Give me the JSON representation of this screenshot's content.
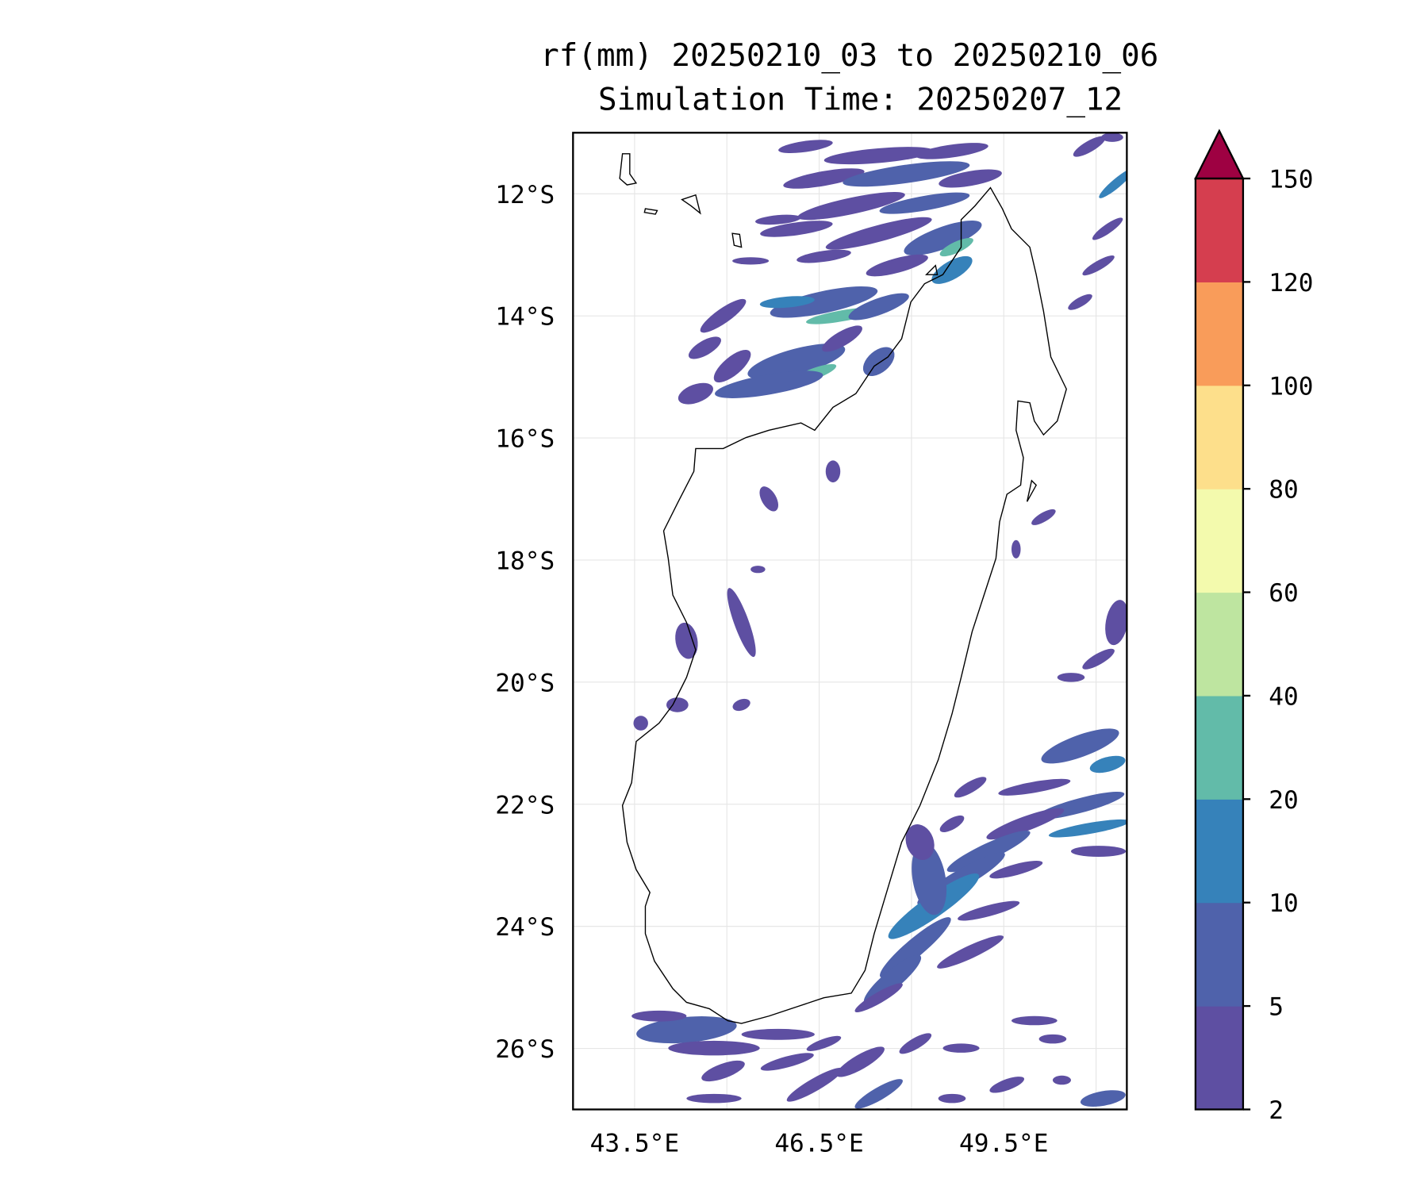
{
  "chart_data": {
    "type": "heatmap",
    "title_line1": "rf(mm) 20250210_03 to 20250210_06",
    "title_line2": "Simulation Time: 20250207_12",
    "variable": "rf",
    "units": "mm",
    "lon_range": [
      42.5,
      51.5
    ],
    "lat_range": [
      -27,
      -11
    ],
    "x_ticks": [
      {
        "value": 43.5,
        "label": "43.5°E"
      },
      {
        "value": 46.5,
        "label": "46.5°E"
      },
      {
        "value": 49.5,
        "label": "49.5°E"
      }
    ],
    "y_ticks": [
      {
        "value": -12,
        "label": "12°S"
      },
      {
        "value": -14,
        "label": "14°S"
      },
      {
        "value": -16,
        "label": "16°S"
      },
      {
        "value": -18,
        "label": "18°S"
      },
      {
        "value": -20,
        "label": "20°S"
      },
      {
        "value": -22,
        "label": "22°S"
      },
      {
        "value": -24,
        "label": "24°S"
      },
      {
        "value": -26,
        "label": "26°S"
      }
    ],
    "grid": true,
    "colorbar": {
      "levels": [
        2,
        5,
        10,
        20,
        40,
        60,
        80,
        100,
        120,
        150
      ],
      "labels": [
        "2",
        "5",
        "10",
        "20",
        "40",
        "60",
        "80",
        "100",
        "120",
        "150"
      ],
      "colors": [
        "#5e4fa2",
        "#4f62ab",
        "#3682ba",
        "#62bba9",
        "#bee5a0",
        "#f3faad",
        "#fddf8b",
        "#f99c5a",
        "#d53e4f"
      ],
      "extend_color": "#9e0142",
      "extend": "max",
      "placement": "right"
    },
    "summary": "Rainfall mostly 2–20 mm over Madagascar region, with 20–40 mm pockets off the northwest coast; rain bands in northwest, southeast and south offshore."
  }
}
